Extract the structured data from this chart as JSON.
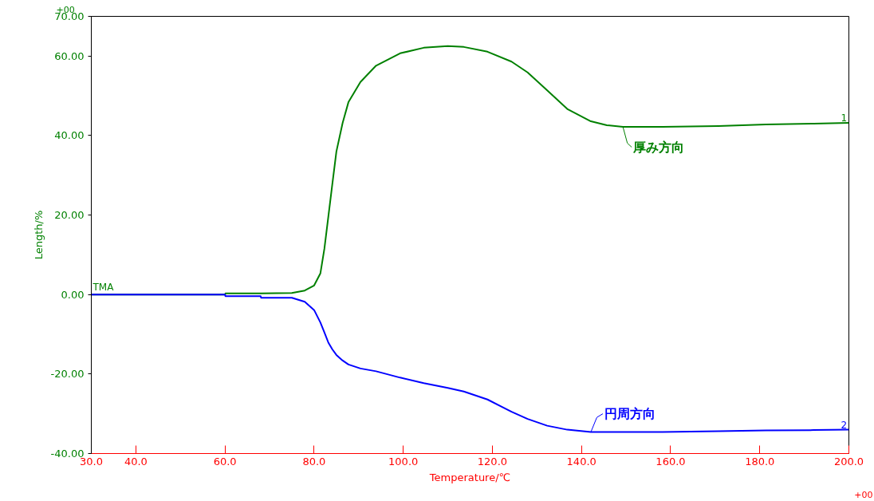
{
  "chart_data": {
    "type": "line",
    "xlabel": "Temperature/℃",
    "ylabel": "Length/%",
    "x": [
      30,
      60,
      60.1,
      68,
      68.1,
      75,
      77.9,
      80,
      81.4,
      82.3,
      83.2,
      84.1,
      85,
      86.4,
      87.7,
      90.4,
      93.9,
      99.3,
      104.6,
      110,
      113.6,
      118.9,
      124.3,
      127.9,
      132.3,
      136.8,
      142.1,
      145.7,
      149.3,
      158.2,
      170.7,
      181.4,
      192.1,
      200
    ],
    "series": [
      {
        "name": "厚み方向",
        "color": "#008000",
        "values": [
          0,
          0,
          0.3,
          0.3,
          0.3,
          0.4,
          1,
          2.3,
          5.3,
          11.5,
          19.7,
          27.9,
          36,
          43.2,
          48.4,
          53.5,
          57.6,
          60.7,
          62.1,
          62.5,
          62.3,
          61.1,
          58.6,
          55.9,
          51.4,
          46.7,
          43.6,
          42.6,
          42.2,
          42.2,
          42.4,
          42.8,
          43,
          43.2
        ]
      },
      {
        "name": "円周方向",
        "color": "#0000ff",
        "values": [
          0,
          0,
          -0.4,
          -0.4,
          -0.8,
          -0.8,
          -1.8,
          -3.9,
          -7,
          -9.5,
          -12.1,
          -13.8,
          -15.2,
          -16.6,
          -17.6,
          -18.6,
          -19.3,
          -20.9,
          -22.3,
          -23.5,
          -24.4,
          -26.4,
          -29.5,
          -31.3,
          -33,
          -34,
          -34.6,
          -34.6,
          -34.6,
          -34.6,
          -34.4,
          -34.2,
          -34.1,
          -34
        ]
      }
    ],
    "xlim": [
      30,
      200
    ],
    "ylim": [
      -40,
      70
    ],
    "xticks": [
      {
        "value": 30,
        "label": "30.0"
      },
      {
        "value": 40,
        "label": "40.0"
      },
      {
        "value": 60,
        "label": "60.0"
      },
      {
        "value": 80,
        "label": "80.0"
      },
      {
        "value": 100,
        "label": "100.0"
      },
      {
        "value": 120,
        "label": "120.0"
      },
      {
        "value": 140,
        "label": "140.0"
      },
      {
        "value": 160,
        "label": "160.0"
      },
      {
        "value": 180,
        "label": "180.0"
      },
      {
        "value": 200,
        "label": "200.0"
      }
    ],
    "yticks": [
      {
        "value": -40,
        "label": "-40.00"
      },
      {
        "value": -20,
        "label": "-20.00"
      },
      {
        "value": 0,
        "label": "0.00"
      },
      {
        "value": 20,
        "label": "20.00"
      },
      {
        "value": 40,
        "label": "40.00"
      },
      {
        "value": 60,
        "label": "60.00"
      },
      {
        "value": 70,
        "label": "70.00"
      }
    ],
    "annotations": [
      "+00",
      "+00",
      "TMA",
      "1",
      "2"
    ],
    "grid": false,
    "legend": false,
    "marker": "none",
    "line_style": "solid"
  }
}
